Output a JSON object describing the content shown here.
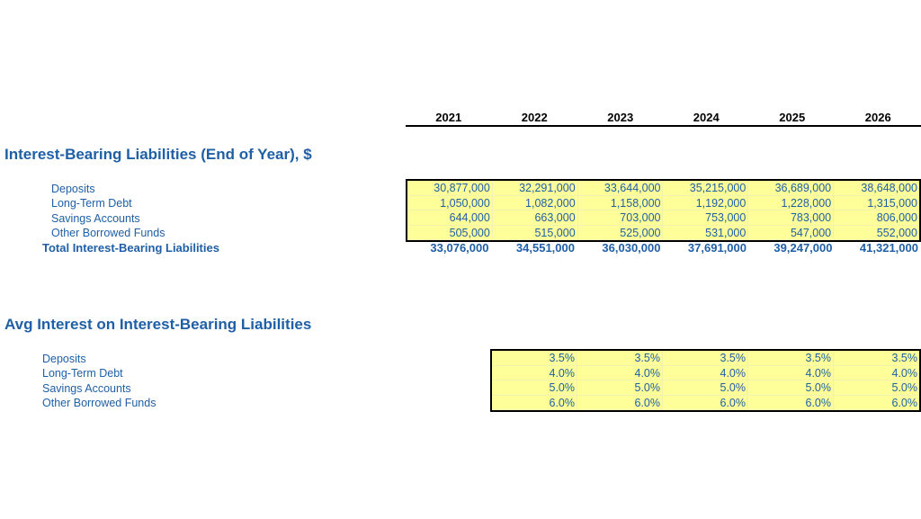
{
  "years": [
    "2021",
    "2022",
    "2023",
    "2024",
    "2025",
    "2026"
  ],
  "liabilities": {
    "title": "Interest-Bearing Liabilities (End of Year), $",
    "rows": [
      {
        "label": "Deposits",
        "values": [
          "30,877,000",
          "32,291,000",
          "33,644,000",
          "35,215,000",
          "36,689,000",
          "38,648,000"
        ]
      },
      {
        "label": "Long-Term Debt",
        "values": [
          "1,050,000",
          "1,082,000",
          "1,158,000",
          "1,192,000",
          "1,228,000",
          "1,315,000"
        ]
      },
      {
        "label": "Savings Accounts",
        "values": [
          "644,000",
          "663,000",
          "703,000",
          "753,000",
          "783,000",
          "806,000"
        ]
      },
      {
        "label": "Other Borrowed Funds",
        "values": [
          "505,000",
          "515,000",
          "525,000",
          "531,000",
          "547,000",
          "552,000"
        ]
      }
    ],
    "total_label": "Total Interest-Bearing Liabilities",
    "totals": [
      "33,076,000",
      "34,551,000",
      "36,030,000",
      "37,691,000",
      "39,247,000",
      "41,321,000"
    ]
  },
  "interest": {
    "title": "Avg Interest on Interest-Bearing Liabilities",
    "rows": [
      {
        "label": "Deposits",
        "values": [
          "3.5%",
          "3.5%",
          "3.5%",
          "3.5%",
          "3.5%"
        ]
      },
      {
        "label": "Long-Term Debt",
        "values": [
          "4.0%",
          "4.0%",
          "4.0%",
          "4.0%",
          "4.0%"
        ]
      },
      {
        "label": "Savings Accounts",
        "values": [
          "5.0%",
          "5.0%",
          "5.0%",
          "5.0%",
          "5.0%"
        ]
      },
      {
        "label": "Other Borrowed Funds",
        "values": [
          "6.0%",
          "6.0%",
          "6.0%",
          "6.0%",
          "6.0%"
        ]
      }
    ]
  }
}
